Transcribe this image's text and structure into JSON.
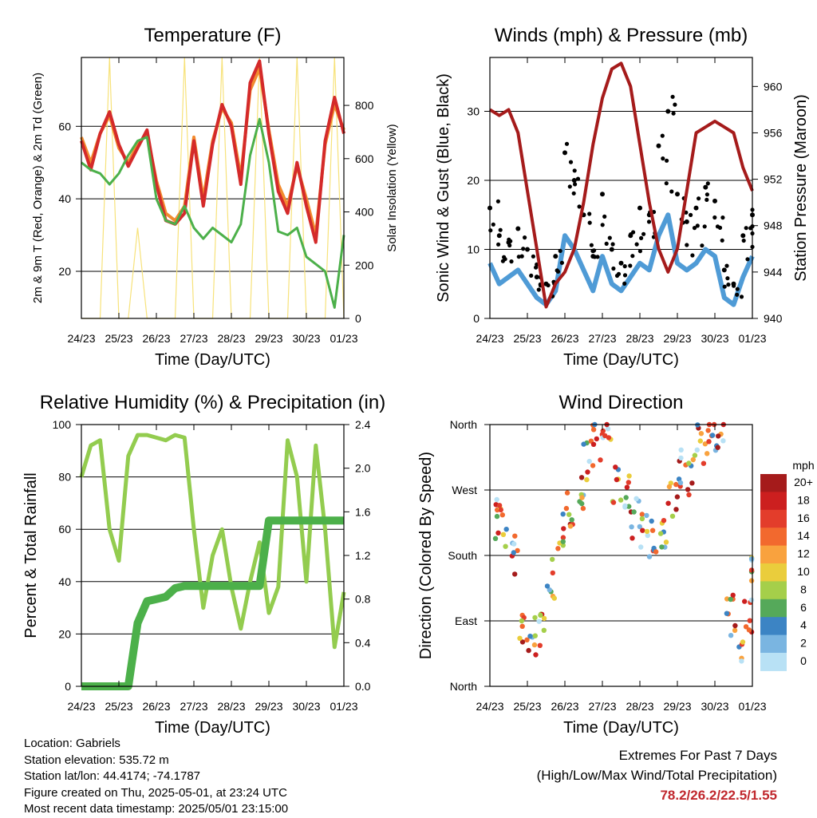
{
  "x_tick_labels": [
    "24/23",
    "25/23",
    "26/23",
    "27/23",
    "28/23",
    "29/23",
    "30/23",
    "01/23"
  ],
  "chart_data": [
    {
      "type": "line",
      "title": "Temperature (F)",
      "xlabel": "Time (Day/UTC)",
      "ylabel": "2m & 9m T (Red, Orange) & 2m Td (Green)",
      "y2label": "Solar Insolation (Yellow)",
      "ylim": [
        7,
        79
      ],
      "y2lim": [
        0,
        980
      ],
      "yticks": [
        20,
        40,
        60
      ],
      "y2ticks": [
        0,
        200,
        400,
        600,
        800
      ],
      "grid": true,
      "x": [
        0,
        0.25,
        0.5,
        0.75,
        1,
        1.25,
        1.5,
        1.75,
        2,
        2.25,
        2.5,
        2.75,
        3,
        3.25,
        3.5,
        3.75,
        4,
        4.25,
        4.5,
        4.75,
        5,
        5.25,
        5.5,
        5.75,
        6,
        6.25,
        6.5,
        6.75,
        7
      ],
      "series": [
        {
          "values": [
            56,
            48,
            58,
            64,
            55,
            49,
            54,
            59,
            44,
            34,
            33,
            36,
            56,
            38,
            55,
            66,
            60,
            44,
            72,
            78,
            58,
            42,
            36,
            50,
            38,
            28,
            56,
            68,
            58
          ]
        },
        {
          "values": [
            57,
            50,
            58,
            63,
            54,
            50,
            55,
            58,
            45,
            36,
            34,
            38,
            57,
            40,
            56,
            65,
            61,
            46,
            70,
            76,
            59,
            44,
            38,
            49,
            40,
            30,
            55,
            66,
            59
          ]
        },
        {
          "values": [
            50,
            48,
            47,
            44,
            47,
            52,
            56,
            57,
            40,
            34,
            33,
            38,
            32,
            29,
            32,
            30,
            28,
            33,
            52,
            62,
            50,
            31,
            30,
            32,
            24,
            22,
            20,
            10,
            30
          ]
        },
        {
          "axis": "y2",
          "values": [
            0,
            0,
            0,
            980,
            0,
            0,
            340,
            0,
            0,
            0,
            0,
            980,
            0,
            0,
            0,
            980,
            0,
            0,
            0,
            980,
            0,
            0,
            0,
            980,
            0,
            0,
            0,
            980,
            0
          ]
        }
      ]
    },
    {
      "type": "line",
      "title": "Winds (mph) & Pressure (mb)",
      "xlabel": "Time (Day/UTC)",
      "ylabel": "Sonic Wind & Gust (Blue, Black)",
      "y2label": "Station Pressure (Maroon)",
      "ylim": [
        0,
        37.8
      ],
      "y2lim": [
        940,
        962.5
      ],
      "yticks": [
        0,
        10,
        20,
        30
      ],
      "y2ticks": [
        940,
        944,
        948,
        952,
        956,
        960
      ],
      "grid": true,
      "x": [
        0,
        0.25,
        0.5,
        0.75,
        1,
        1.25,
        1.5,
        1.75,
        2,
        2.25,
        2.5,
        2.75,
        3,
        3.25,
        3.5,
        3.75,
        4,
        4.25,
        4.5,
        4.75,
        5,
        5.25,
        5.5,
        5.75,
        6,
        6.25,
        6.5,
        6.75,
        7
      ],
      "series": [
        {
          "values": [
            8,
            5,
            6,
            7,
            5,
            3,
            2,
            4,
            12,
            10,
            7,
            4,
            9,
            5,
            4,
            6,
            8,
            7,
            12,
            15,
            8,
            7,
            8,
            10,
            9,
            3,
            2,
            6,
            9
          ]
        },
        {
          "values": [
            16,
            12,
            11,
            13,
            10,
            6,
            5,
            9,
            24,
            20,
            15,
            9,
            18,
            10,
            8,
            12,
            16,
            15,
            25,
            30,
            18,
            14,
            16,
            19,
            17,
            7,
            5,
            12,
            15
          ]
        },
        {
          "axis": "y2",
          "values": [
            958,
            957.5,
            958,
            956,
            951,
            946,
            941,
            943,
            944,
            946,
            950,
            955,
            959,
            961.5,
            962,
            960,
            955,
            950,
            946,
            944,
            946,
            951,
            956,
            956.5,
            957,
            956.5,
            956,
            953,
            951
          ]
        }
      ]
    },
    {
      "type": "line",
      "title": "Relative Humidity (%) & Precipitation (in)",
      "xlabel": "Time (Day/UTC)",
      "ylabel": "Percent & Total Rainfall",
      "ylim": [
        0,
        100
      ],
      "y2lim": [
        0,
        2.4
      ],
      "yticks": [
        0,
        20,
        40,
        60,
        80,
        100
      ],
      "y2ticks": [
        "0.0",
        "0.4",
        "0.8",
        "1.2",
        "1.6",
        "2.0",
        "2.4"
      ],
      "grid": true,
      "x": [
        0,
        0.25,
        0.5,
        0.75,
        1,
        1.25,
        1.5,
        1.75,
        2,
        2.25,
        2.5,
        2.75,
        3,
        3.25,
        3.5,
        3.75,
        4,
        4.25,
        4.5,
        4.75,
        5,
        5.25,
        5.5,
        5.75,
        6,
        6.25,
        6.5,
        6.75,
        7
      ],
      "series": [
        {
          "values": [
            80,
            92,
            94,
            60,
            48,
            88,
            96,
            96,
            95,
            94,
            96,
            95,
            60,
            30,
            50,
            60,
            38,
            22,
            40,
            55,
            28,
            38,
            94,
            80,
            40,
            92,
            60,
            15,
            36
          ]
        },
        {
          "axis": "y2",
          "values": [
            0,
            0,
            0,
            0,
            0,
            0,
            0.58,
            0.78,
            0.8,
            0.82,
            0.9,
            0.92,
            0.92,
            0.92,
            0.92,
            0.92,
            0.92,
            0.92,
            0.92,
            0.92,
            1.52,
            1.52,
            1.52,
            1.52,
            1.52,
            1.52,
            1.52,
            1.52,
            1.52
          ]
        }
      ]
    },
    {
      "type": "scatter",
      "title": "Wind Direction",
      "xlabel": "Time (Day/UTC)",
      "ylabel": "Direction (Colored By Speed)",
      "yticks": [
        "North",
        "East",
        "South",
        "West",
        "North"
      ],
      "ylim": [
        0,
        360
      ],
      "grid": true,
      "legend": {
        "title": "mph",
        "placement": "right",
        "labels": [
          "20+",
          "18",
          "16",
          "14",
          "12",
          "10",
          "8",
          "6",
          "4",
          "2",
          "0"
        ],
        "colors": [
          "#a51b1b",
          "#cc1f1f",
          "#e33d2b",
          "#f2692e",
          "#f9a23e",
          "#eacd3c",
          "#a5cf4a",
          "#55a95a",
          "#3c84c4",
          "#7ab5e1",
          "#b8e1f5"
        ]
      },
      "x": [
        0,
        0.25,
        0.5,
        0.75,
        1,
        1.25,
        1.5,
        1.75,
        2,
        2.25,
        2.5,
        2.75,
        3,
        3.25,
        3.5,
        3.75,
        4,
        4.25,
        4.5,
        4.75,
        5,
        5.25,
        5.5,
        5.75,
        6,
        6.25,
        6.5,
        6.75,
        7
      ],
      "series": [
        {
          "values": [
            230,
            220,
            180,
            90,
            70,
            80,
            150,
            210,
            240,
            270,
            310,
            340,
            355,
            280,
            260,
            230,
            210,
            200,
            205,
            260,
            300,
            290,
            330,
            340,
            350,
            100,
            60,
            90,
            170
          ]
        }
      ]
    }
  ],
  "footer": {
    "location": "Location: Gabriels",
    "elevation": "Station elevation: 535.72 m",
    "latlon": "Station lat/lon: 44.4174; -74.1787",
    "created": "Figure created on Thu, 2025-05-01, at 23:24 UTC",
    "recent": "Most recent data timestamp: 2025/05/01 23:15:00"
  },
  "extremes": {
    "title": "Extremes For Past 7 Days",
    "subtitle": "(High/Low/Max Wind/Total Precipitation)",
    "values": "78.2/26.2/22.5/1.55"
  },
  "colors": {
    "temp_2m": "#d42a2a",
    "temp_9m": "#f28b2f",
    "dewpoint": "#4cb04a",
    "solar": "#f7e27a",
    "wind": "#4f9bd6",
    "gust": "#000000",
    "pressure": "#a51b1b",
    "rh": "#93cc4f",
    "precip": "#4cb04a"
  }
}
